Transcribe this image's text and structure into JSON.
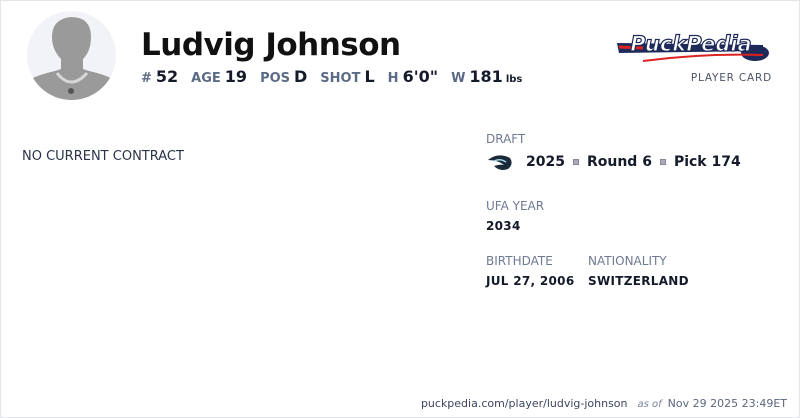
{
  "player": {
    "name": "Ludvig Johnson",
    "number_label": "#",
    "number": "52",
    "age_label": "AGE",
    "age": "19",
    "pos_label": "POS",
    "pos": "D",
    "shot_label": "SHOT",
    "shot": "L",
    "height_label": "H",
    "height": "6'0\"",
    "weight_label": "W",
    "weight": "181",
    "weight_unit": "lbs"
  },
  "brand": {
    "logo_text": "PuckPedia",
    "subtitle": "PLAYER CARD"
  },
  "contract": {
    "status": "NO CURRENT CONTRACT"
  },
  "draft": {
    "label": "DRAFT",
    "year": "2025",
    "round": "Round 6",
    "pick": "Pick 174",
    "team_icon": "seattle-kraken-logo-icon"
  },
  "ufa": {
    "label": "UFA YEAR",
    "value": "2034"
  },
  "birthdate": {
    "label": "BIRTHDATE",
    "value": "JUL 27, 2006"
  },
  "nationality": {
    "label": "NATIONALITY",
    "value": "SWITZERLAND"
  },
  "footer": {
    "url": "puckpedia.com/player/ludvig-johnson",
    "as_of": "as of",
    "timestamp": "Nov 29 2025 23:49ET"
  }
}
